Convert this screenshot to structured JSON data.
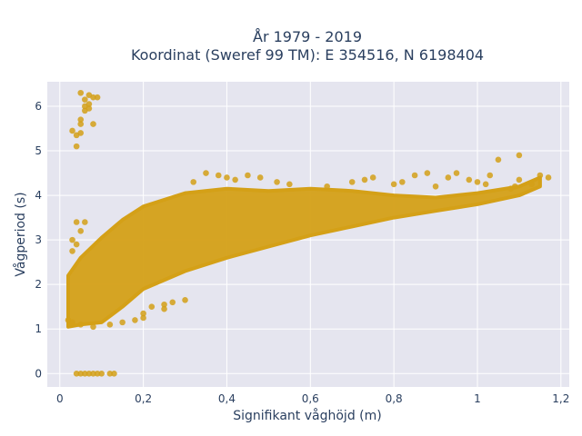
{
  "chart_data": {
    "type": "scatter",
    "title_lines": [
      "År 1979 - 2019",
      "Koordinat (Sweref 99 TM): E 354516, N 6198404"
    ],
    "xlabel": "Signifikant våghöjd (m)",
    "ylabel": "Vågperiod (s)",
    "xlim": [
      -0.03,
      1.22
    ],
    "ylim": [
      -0.3,
      6.55
    ],
    "x_ticks": [
      0,
      0.2,
      0.4,
      0.6,
      0.8,
      1,
      1.2
    ],
    "x_tick_labels": [
      "0",
      "0,2",
      "0,4",
      "0,6",
      "0,8",
      "1",
      "1,2"
    ],
    "y_ticks": [
      0,
      1,
      2,
      3,
      4,
      5,
      6
    ],
    "y_tick_labels": [
      "0",
      "1",
      "2",
      "3",
      "4",
      "5",
      "6"
    ],
    "grid": true,
    "colors": {
      "marker": "#d4a017",
      "plot_bg": "#e5e5ef",
      "grid": "#ffffff"
    },
    "series": [
      {
        "trend_upper": [
          [
            0.02,
            2.2
          ],
          [
            0.05,
            2.6
          ],
          [
            0.1,
            3.05
          ],
          [
            0.15,
            3.45
          ],
          [
            0.2,
            3.75
          ],
          [
            0.3,
            4.05
          ],
          [
            0.4,
            4.15
          ],
          [
            0.5,
            4.1
          ],
          [
            0.6,
            4.15
          ],
          [
            0.7,
            4.1
          ],
          [
            0.8,
            4.0
          ],
          [
            0.9,
            3.95
          ],
          [
            1.0,
            4.05
          ],
          [
            1.1,
            4.2
          ],
          [
            1.15,
            4.4
          ]
        ],
        "trend_lower": [
          [
            0.02,
            1.05
          ],
          [
            0.05,
            1.1
          ],
          [
            0.1,
            1.15
          ],
          [
            0.15,
            1.5
          ],
          [
            0.2,
            1.9
          ],
          [
            0.3,
            2.3
          ],
          [
            0.4,
            2.6
          ],
          [
            0.5,
            2.85
          ],
          [
            0.6,
            3.1
          ],
          [
            0.7,
            3.3
          ],
          [
            0.8,
            3.5
          ],
          [
            0.9,
            3.65
          ],
          [
            1.0,
            3.8
          ],
          [
            1.1,
            4.0
          ],
          [
            1.15,
            4.2
          ]
        ],
        "points": [
          [
            0.03,
            5.45
          ],
          [
            0.04,
            5.35
          ],
          [
            0.04,
            5.1
          ],
          [
            0.05,
            5.6
          ],
          [
            0.05,
            5.7
          ],
          [
            0.05,
            5.4
          ],
          [
            0.06,
            5.9
          ],
          [
            0.06,
            6.0
          ],
          [
            0.07,
            6.05
          ],
          [
            0.07,
            5.95
          ],
          [
            0.08,
            5.6
          ],
          [
            0.05,
            6.3
          ],
          [
            0.06,
            6.15
          ],
          [
            0.08,
            6.2
          ],
          [
            0.09,
            6.2
          ],
          [
            0.07,
            6.25
          ],
          [
            0.04,
            0.0
          ],
          [
            0.05,
            0.0
          ],
          [
            0.06,
            0.0
          ],
          [
            0.07,
            0.0
          ],
          [
            0.08,
            0.0
          ],
          [
            0.09,
            0.0
          ],
          [
            0.1,
            0.0
          ],
          [
            0.12,
            0.0
          ],
          [
            0.13,
            0.0
          ],
          [
            0.03,
            3.0
          ],
          [
            0.04,
            3.4
          ],
          [
            0.06,
            3.4
          ],
          [
            0.04,
            2.9
          ],
          [
            0.03,
            2.75
          ],
          [
            0.05,
            3.2
          ],
          [
            0.02,
            1.2
          ],
          [
            0.03,
            1.15
          ],
          [
            0.05,
            1.1
          ],
          [
            0.08,
            1.05
          ],
          [
            0.12,
            1.1
          ],
          [
            0.15,
            1.15
          ],
          [
            0.18,
            1.2
          ],
          [
            0.2,
            1.25
          ],
          [
            0.22,
            1.5
          ],
          [
            0.25,
            1.55
          ],
          [
            0.27,
            1.6
          ],
          [
            0.3,
            1.65
          ],
          [
            0.25,
            1.45
          ],
          [
            0.2,
            1.35
          ],
          [
            0.32,
            4.3
          ],
          [
            0.35,
            4.5
          ],
          [
            0.38,
            4.45
          ],
          [
            0.4,
            4.4
          ],
          [
            0.42,
            4.35
          ],
          [
            0.45,
            4.45
          ],
          [
            0.48,
            4.4
          ],
          [
            0.52,
            4.3
          ],
          [
            0.55,
            4.25
          ],
          [
            0.64,
            4.2
          ],
          [
            0.7,
            4.3
          ],
          [
            0.73,
            4.35
          ],
          [
            0.75,
            4.4
          ],
          [
            0.8,
            4.25
          ],
          [
            0.82,
            4.3
          ],
          [
            0.85,
            4.45
          ],
          [
            0.88,
            4.5
          ],
          [
            0.9,
            4.2
          ],
          [
            0.93,
            4.4
          ],
          [
            0.95,
            4.5
          ],
          [
            0.98,
            4.35
          ],
          [
            1.0,
            4.3
          ],
          [
            1.02,
            4.25
          ],
          [
            1.03,
            4.45
          ],
          [
            1.05,
            4.8
          ],
          [
            1.08,
            4.15
          ],
          [
            1.09,
            4.2
          ],
          [
            1.1,
            4.9
          ],
          [
            1.1,
            4.35
          ],
          [
            1.13,
            4.25
          ],
          [
            1.15,
            4.45
          ],
          [
            1.17,
            4.4
          ]
        ]
      }
    ]
  }
}
